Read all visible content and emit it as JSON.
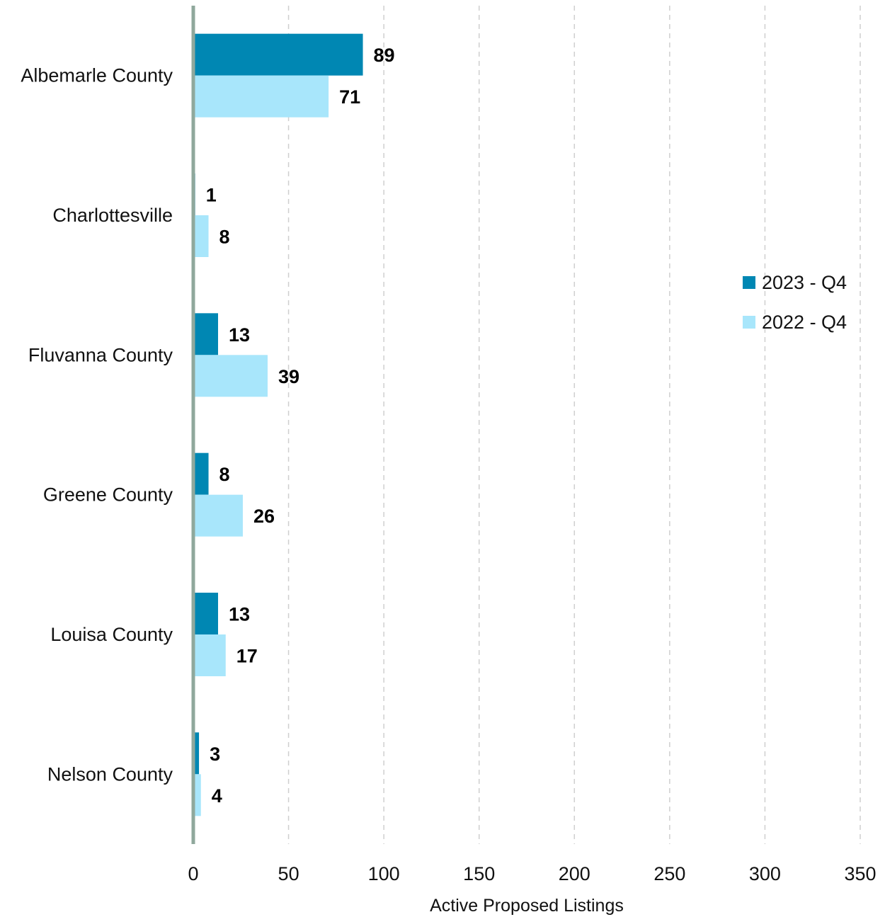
{
  "chart_data": {
    "type": "bar",
    "orientation": "horizontal",
    "categories": [
      "Albemarle County",
      "Charlottesville",
      "Fluvanna County",
      "Greene County",
      "Louisa County",
      "Nelson County"
    ],
    "series": [
      {
        "name": "2023 - Q4",
        "color": "#0087b3",
        "values": [
          89,
          1,
          13,
          8,
          13,
          3
        ]
      },
      {
        "name": "2022 - Q4",
        "color": "#a8e6fb",
        "values": [
          71,
          8,
          39,
          26,
          17,
          4
        ]
      }
    ],
    "xlabel": "Active Proposed Listings",
    "ylabel": "",
    "xlim": [
      0,
      350
    ],
    "xticks": [
      0,
      50,
      100,
      150,
      200,
      250,
      300,
      350
    ],
    "grid": "vertical dashed",
    "legend_position": "right",
    "axis_color": "#8fa89c"
  }
}
